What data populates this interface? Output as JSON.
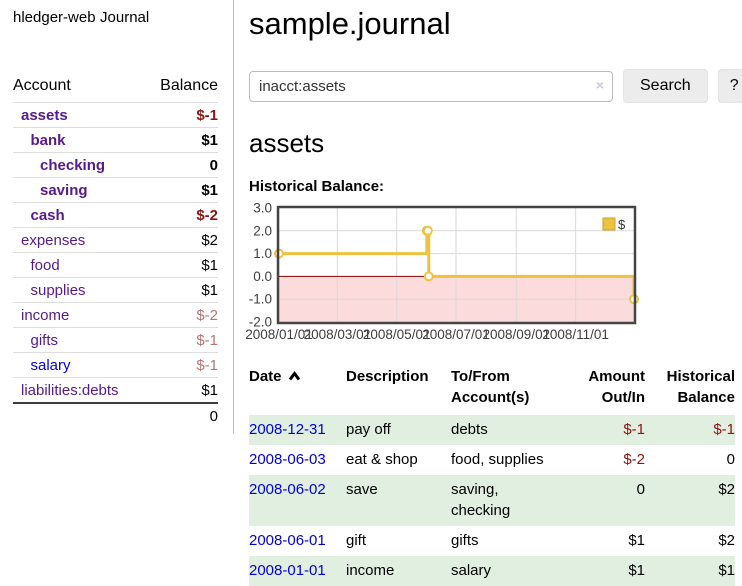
{
  "colors": {
    "purple_link": "#551a8b",
    "blue_link": "#0000dd",
    "neg_strong": "#8b1414",
    "neg_soft": "#b87474",
    "plain": "#000000",
    "stripe_green": "#e1efe0",
    "chart_gold": "#edc240",
    "chart_gold_border": "#caa32a",
    "grid": "#dadada",
    "plot_border": "#444444",
    "tick_text": "#3d3d3d"
  },
  "sidebar": {
    "brand": "hledger-web",
    "nav": "Journal",
    "headers": {
      "account": "Account",
      "balance": "Balance"
    },
    "accounts": [
      {
        "name": "assets",
        "depth": 1,
        "balance": "$-1",
        "bold": true,
        "neg": "strong",
        "link": "purple"
      },
      {
        "name": "bank",
        "depth": 2,
        "balance": "$1",
        "bold": true,
        "neg": "none",
        "link": "purple"
      },
      {
        "name": "checking",
        "depth": 3,
        "balance": "0",
        "bold": true,
        "neg": "none",
        "link": "purple"
      },
      {
        "name": "saving",
        "depth": 3,
        "balance": "$1",
        "bold": true,
        "neg": "none",
        "link": "purple"
      },
      {
        "name": "cash",
        "depth": 2,
        "balance": "$-2",
        "bold": true,
        "neg": "strong",
        "link": "purple"
      },
      {
        "name": "expenses",
        "depth": 1,
        "balance": "$2",
        "bold": false,
        "neg": "none",
        "link": "purple"
      },
      {
        "name": "food",
        "depth": 2,
        "balance": "$1",
        "bold": false,
        "neg": "none",
        "link": "purple"
      },
      {
        "name": "supplies",
        "depth": 2,
        "balance": "$1",
        "bold": false,
        "neg": "none",
        "link": "purple"
      },
      {
        "name": "income",
        "depth": 1,
        "balance": "$-2",
        "bold": false,
        "neg": "soft",
        "link": "purple"
      },
      {
        "name": "gifts",
        "depth": 2,
        "balance": "$-1",
        "bold": false,
        "neg": "soft",
        "link": "purple"
      },
      {
        "name": "salary",
        "depth": 2,
        "balance": "$-1",
        "bold": false,
        "neg": "soft",
        "link": "blue"
      },
      {
        "name": "liabilities:debts",
        "depth": 1,
        "balance": "$1",
        "bold": false,
        "neg": "none",
        "link": "purple"
      }
    ],
    "total": "0"
  },
  "main": {
    "title": "sample.journal",
    "search": {
      "value": "inacct:assets",
      "clear_icon": "×",
      "search_button": "Search",
      "help_button": "?"
    },
    "account_heading": "assets",
    "chart_title": "Historical Balance:"
  },
  "chart_data": {
    "type": "line",
    "step": true,
    "title": "Historical Balance",
    "series": [
      {
        "name": "$",
        "color": "#edc240",
        "points": [
          [
            "2008-01-01",
            1
          ],
          [
            "2008-06-01",
            2
          ],
          [
            "2008-06-02",
            2
          ],
          [
            "2008-06-03",
            0
          ],
          [
            "2008-12-31",
            -1
          ]
        ]
      }
    ],
    "xlim": [
      "2008-01-01",
      "2008-12-31"
    ],
    "ylim": [
      -2,
      3
    ],
    "xtick_labels": [
      "2008/01/01",
      "2008/03/01",
      "2008/05/01",
      "2008/07/01",
      "2008/09/01",
      "2008/11/01"
    ],
    "ytick_labels": [
      "3.0",
      "2.0",
      "1.0",
      "0.0",
      "-1.0",
      "-2.0"
    ],
    "legend": {
      "label": "$",
      "position": "top-right"
    },
    "grid": true,
    "negative_region_color": "#fbdbdb",
    "zero_line_color": "#8b0000"
  },
  "register": {
    "headers": {
      "date": "Date",
      "description": "Description",
      "accounts": "To/From Account(s)",
      "amount": "Amount Out/In",
      "balance": "Historical Balance"
    },
    "rows": [
      {
        "date": "2008-12-31",
        "description": "pay off",
        "accounts": "debts",
        "amount": "$-1",
        "amount_neg": true,
        "balance": "$-1",
        "balance_neg": true
      },
      {
        "date": "2008-06-03",
        "description": "eat & shop",
        "accounts": "food, supplies",
        "amount": "$-2",
        "amount_neg": true,
        "balance": "0",
        "balance_neg": false
      },
      {
        "date": "2008-06-02",
        "description": "save",
        "accounts": "saving, checking",
        "amount": "0",
        "amount_neg": false,
        "balance": "$2",
        "balance_neg": false
      },
      {
        "date": "2008-06-01",
        "description": "gift",
        "accounts": "gifts",
        "amount": "$1",
        "amount_neg": false,
        "balance": "$2",
        "balance_neg": false
      },
      {
        "date": "2008-01-01",
        "description": "income",
        "accounts": "salary",
        "amount": "$1",
        "amount_neg": false,
        "balance": "$1",
        "balance_neg": false
      }
    ]
  }
}
